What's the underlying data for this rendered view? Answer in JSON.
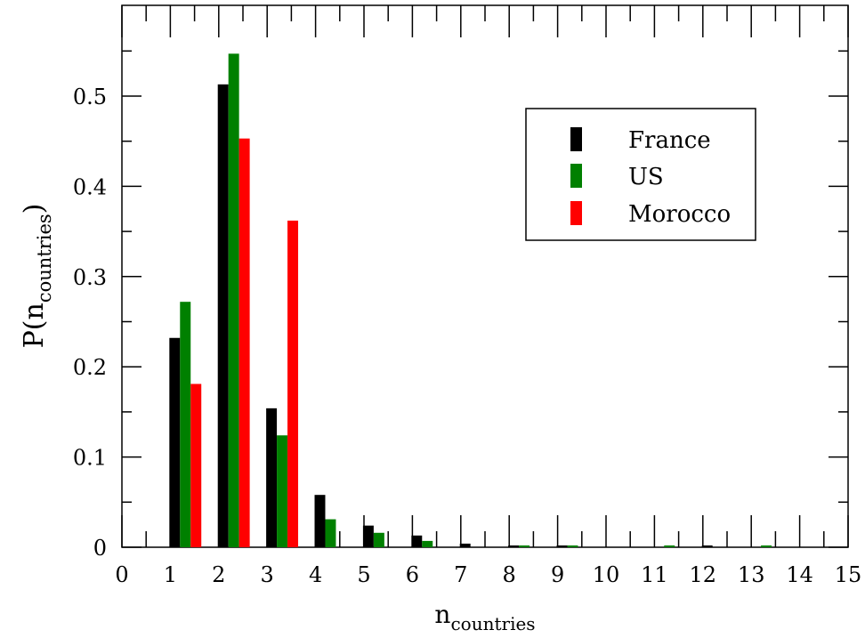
{
  "chart_data": {
    "type": "bar",
    "xlabel": "n",
    "xlabel_sub": "countries",
    "ylabel": "P(n",
    "ylabel_sub": "countries",
    "ylabel_close": ")",
    "xlim": [
      0,
      15
    ],
    "ylim": [
      0,
      0.55
    ],
    "xticks": [
      "0",
      "1",
      "2",
      "3",
      "4",
      "5",
      "6",
      "7",
      "8",
      "9",
      "10",
      "11",
      "12",
      "13",
      "14",
      "15"
    ],
    "yticks": [
      "0",
      "0.1",
      "0.2",
      "0.3",
      "0.4",
      "0.5"
    ],
    "legend_position": "top-right",
    "x": [
      1,
      2,
      3,
      4,
      5,
      6,
      7,
      8,
      9,
      10,
      11,
      12,
      13
    ],
    "series": [
      {
        "name": "France",
        "color": "#000000",
        "values": [
          0.232,
          0.513,
          0.154,
          0.058,
          0.024,
          0.013,
          0.004,
          0.001,
          0.001,
          0,
          0,
          0.001,
          0
        ]
      },
      {
        "name": "US",
        "color": "#008000",
        "values": [
          0.272,
          0.547,
          0.124,
          0.031,
          0.016,
          0.007,
          0,
          0.001,
          0.001,
          0,
          0.001,
          0,
          0.001
        ]
      },
      {
        "name": "Morocco",
        "color": "#ff0000",
        "values": [
          0.181,
          0.453,
          0.362,
          0,
          0,
          0,
          0,
          0,
          0,
          0,
          0,
          0,
          0
        ]
      }
    ]
  }
}
